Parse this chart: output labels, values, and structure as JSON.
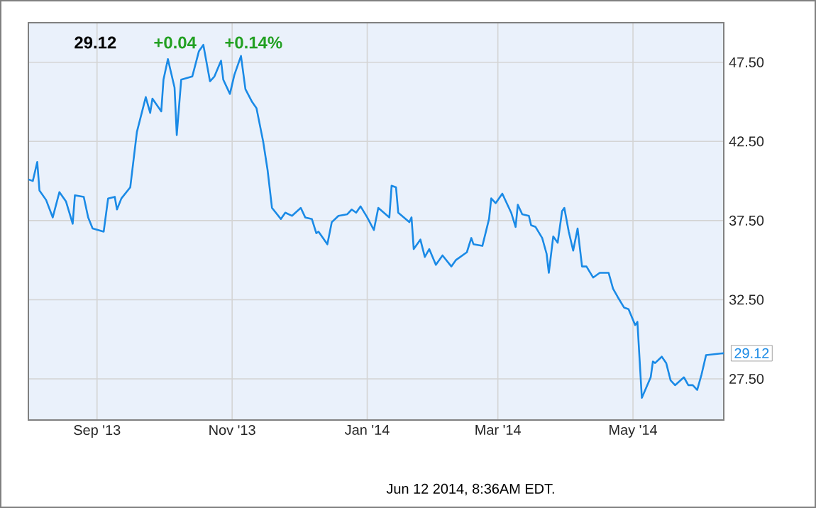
{
  "chart_data": {
    "type": "line",
    "title": "29.12",
    "color": "#1a8ae6",
    "grid": true,
    "annotations": [
      "+0.04",
      "+0.14%",
      "Jun 12 2014, 8:36AM EDT.",
      {
        "text": "29.12",
        "x": "2014-06-11",
        "y": 29.12
      }
    ],
    "xlim": [
      "2013-08-01",
      "2014-06-11"
    ],
    "xticks": [
      {
        "value": "2013-09-01",
        "label": "Sep '13"
      },
      {
        "value": "2013-11-01",
        "label": "Nov '13"
      },
      {
        "value": "2014-01-01",
        "label": "Jan '14"
      },
      {
        "value": "2014-03-01",
        "label": "Mar '14"
      },
      {
        "value": "2014-05-01",
        "label": "May '14"
      }
    ],
    "ylim": [
      24.9,
      50.0
    ],
    "yticks": [
      {
        "value": 27.5,
        "label": "27.50"
      },
      {
        "value": 32.5,
        "label": "32.50"
      },
      {
        "value": 37.5,
        "label": "37.50"
      },
      {
        "value": 42.5,
        "label": "42.50"
      },
      {
        "value": 47.5,
        "label": "47.50"
      }
    ],
    "x": [
      "2013-08-01",
      "2013-08-03",
      "2013-08-05",
      "2013-08-06",
      "2013-08-09",
      "2013-08-12",
      "2013-08-15",
      "2013-08-18",
      "2013-08-21",
      "2013-08-22",
      "2013-08-26",
      "2013-08-28",
      "2013-08-30",
      "2013-09-04",
      "2013-09-06",
      "2013-09-09",
      "2013-09-10",
      "2013-09-12",
      "2013-09-16",
      "2013-09-19",
      "2013-09-23",
      "2013-09-25",
      "2013-09-26",
      "2013-09-30",
      "2013-10-01",
      "2013-10-03",
      "2013-10-06",
      "2013-10-07",
      "2013-10-09",
      "2013-10-14",
      "2013-10-17",
      "2013-10-19",
      "2013-10-22",
      "2013-10-24",
      "2013-10-27",
      "2013-10-28",
      "2013-10-31",
      "2013-11-02",
      "2013-11-05",
      "2013-11-07",
      "2013-11-10",
      "2013-11-12",
      "2013-11-15",
      "2013-11-17",
      "2013-11-19",
      "2013-11-23",
      "2013-11-25",
      "2013-11-28",
      "2013-12-02",
      "2013-12-04",
      "2013-12-07",
      "2013-12-09",
      "2013-12-10",
      "2013-12-14",
      "2013-12-16",
      "2013-12-19",
      "2013-12-23",
      "2013-12-25",
      "2013-12-27",
      "2013-12-29",
      "2014-01-01",
      "2014-01-04",
      "2014-01-06",
      "2014-01-11",
      "2014-01-12",
      "2014-01-14",
      "2014-01-15",
      "2014-01-20",
      "2014-01-21",
      "2014-01-22",
      "2014-01-25",
      "2014-01-27",
      "2014-01-29",
      "2014-02-01",
      "2014-02-04",
      "2014-02-08",
      "2014-02-10",
      "2014-02-15",
      "2014-02-17",
      "2014-02-18",
      "2014-02-22",
      "2014-02-25",
      "2014-02-26",
      "2014-02-28",
      "2014-03-03",
      "2014-03-07",
      "2014-03-09",
      "2014-03-10",
      "2014-03-12",
      "2014-03-15",
      "2014-03-16",
      "2014-03-18",
      "2014-03-21",
      "2014-03-23",
      "2014-03-24",
      "2014-03-26",
      "2014-03-28",
      "2014-03-30",
      "2014-03-31",
      "2014-04-02",
      "2014-04-04",
      "2014-04-06",
      "2014-04-08",
      "2014-04-10",
      "2014-04-13",
      "2014-04-16",
      "2014-04-20",
      "2014-04-22",
      "2014-04-24",
      "2014-04-27",
      "2014-04-29",
      "2014-05-02",
      "2014-05-03",
      "2014-05-05",
      "2014-05-09",
      "2014-05-10",
      "2014-05-11",
      "2014-05-14",
      "2014-05-16",
      "2014-05-18",
      "2014-05-20",
      "2014-05-24",
      "2014-05-26",
      "2014-05-28",
      "2014-05-30",
      "2014-06-01",
      "2014-06-03",
      "2014-06-11"
    ],
    "values": [
      40.1,
      40.0,
      41.2,
      39.4,
      38.8,
      37.7,
      39.3,
      38.7,
      37.3,
      39.1,
      39.0,
      37.7,
      37.0,
      36.8,
      38.9,
      39.0,
      38.2,
      38.9,
      39.6,
      43.1,
      45.3,
      44.3,
      45.2,
      44.4,
      46.4,
      47.7,
      45.9,
      42.9,
      46.4,
      46.6,
      48.2,
      48.6,
      46.3,
      46.6,
      47.6,
      46.4,
      45.5,
      46.7,
      47.9,
      45.8,
      45.0,
      44.6,
      42.5,
      40.7,
      38.3,
      37.6,
      38.0,
      37.8,
      38.3,
      37.7,
      37.6,
      36.7,
      36.8,
      36.0,
      37.4,
      37.8,
      37.9,
      38.2,
      38.0,
      38.4,
      37.7,
      36.9,
      38.3,
      37.7,
      39.7,
      39.6,
      38.0,
      37.4,
      37.7,
      35.7,
      36.3,
      35.2,
      35.7,
      34.7,
      35.3,
      34.6,
      35.0,
      35.5,
      36.4,
      36.0,
      35.9,
      37.6,
      38.9,
      38.6,
      39.2,
      38.0,
      37.1,
      38.5,
      37.9,
      37.8,
      37.2,
      37.1,
      36.4,
      35.4,
      34.2,
      36.5,
      36.1,
      38.1,
      38.3,
      36.8,
      35.6,
      37.0,
      34.6,
      34.6,
      33.9,
      34.2,
      34.2,
      33.2,
      32.7,
      32.0,
      31.9,
      30.9,
      31.1,
      26.3,
      27.6,
      28.6,
      28.5,
      28.9,
      28.5,
      27.4,
      27.1,
      27.6,
      27.1,
      27.1,
      26.8,
      27.8,
      29.0,
      29.12
    ]
  }
}
